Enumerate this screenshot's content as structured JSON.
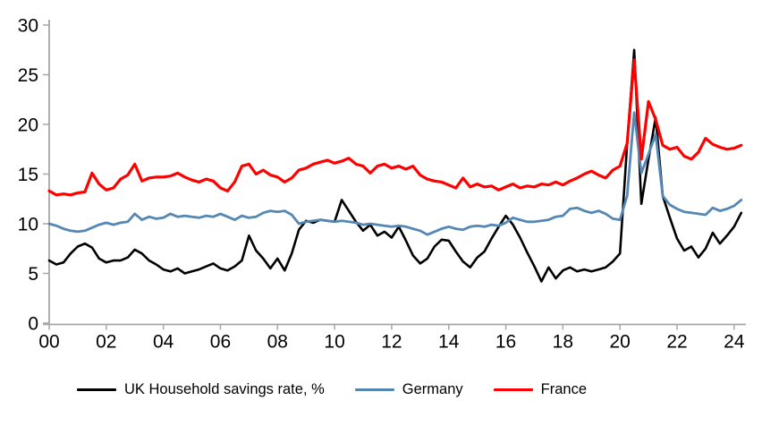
{
  "chart_data": {
    "type": "line",
    "title": "",
    "xlabel": "",
    "ylabel": "",
    "frequency": "quarterly",
    "x_start_year": 2000,
    "x_end_year": 2024.25,
    "x_tick_labels": [
      "00",
      "02",
      "04",
      "06",
      "08",
      "10",
      "12",
      "14",
      "16",
      "18",
      "20",
      "22",
      "24"
    ],
    "y_ticks": [
      0,
      5,
      10,
      15,
      20,
      25,
      30
    ],
    "ylim": [
      0,
      30
    ],
    "grid": false,
    "legend_position": "bottom",
    "axis_color": "#a6a6a6",
    "text_color": "#000000",
    "series": [
      {
        "name": "UK Household savings rate, %",
        "color": "#000000",
        "values": [
          6.3,
          5.9,
          6.1,
          7.0,
          7.7,
          8.0,
          7.6,
          6.5,
          6.1,
          6.3,
          6.3,
          6.6,
          7.4,
          7.0,
          6.3,
          5.9,
          5.4,
          5.2,
          5.5,
          5.0,
          5.2,
          5.4,
          5.7,
          6.0,
          5.5,
          5.3,
          5.7,
          6.3,
          8.8,
          7.3,
          6.5,
          5.5,
          6.5,
          5.3,
          7.0,
          9.4,
          10.3,
          10.1,
          10.4,
          10.3,
          10.2,
          12.4,
          11.3,
          10.2,
          9.3,
          9.9,
          8.8,
          9.2,
          8.6,
          9.7,
          8.3,
          6.8,
          6.0,
          6.5,
          7.7,
          8.4,
          8.3,
          7.2,
          6.2,
          5.6,
          6.6,
          7.2,
          8.5,
          9.7,
          10.8,
          9.9,
          8.6,
          7.1,
          5.7,
          4.2,
          5.6,
          4.5,
          5.3,
          5.6,
          5.2,
          5.4,
          5.2,
          5.4,
          5.6,
          6.2,
          7.0,
          18.0,
          27.5,
          12.0,
          16.5,
          20.7,
          12.8,
          10.6,
          8.5,
          7.3,
          7.7,
          6.6,
          7.5,
          9.1,
          8.0,
          8.8,
          9.7,
          11.1
        ]
      },
      {
        "name": "Germany",
        "color": "#5587b4",
        "values": [
          10.0,
          9.8,
          9.5,
          9.3,
          9.2,
          9.3,
          9.6,
          9.9,
          10.1,
          9.9,
          10.1,
          10.2,
          11.0,
          10.4,
          10.7,
          10.5,
          10.6,
          11.0,
          10.7,
          10.8,
          10.7,
          10.6,
          10.8,
          10.7,
          11.0,
          10.7,
          10.4,
          10.8,
          10.6,
          10.7,
          11.1,
          11.3,
          11.2,
          11.3,
          10.9,
          10.0,
          10.2,
          10.3,
          10.4,
          10.3,
          10.2,
          10.3,
          10.2,
          10.1,
          9.9,
          10.0,
          9.9,
          9.8,
          9.7,
          9.8,
          9.7,
          9.5,
          9.3,
          8.9,
          9.2,
          9.5,
          9.7,
          9.5,
          9.4,
          9.7,
          9.8,
          9.7,
          9.9,
          9.8,
          10.1,
          10.6,
          10.4,
          10.2,
          10.2,
          10.3,
          10.4,
          10.7,
          10.8,
          11.5,
          11.6,
          11.3,
          11.1,
          11.3,
          11.0,
          10.5,
          10.4,
          12.8,
          21.2,
          15.1,
          17.0,
          19.0,
          12.8,
          11.9,
          11.5,
          11.2,
          11.1,
          11.0,
          10.9,
          11.6,
          11.3,
          11.5,
          11.8,
          12.4
        ]
      },
      {
        "name": "France",
        "color": "#ff0000",
        "values": [
          13.3,
          12.9,
          13.0,
          12.9,
          13.1,
          13.2,
          15.1,
          14.0,
          13.4,
          13.6,
          14.5,
          14.9,
          16.0,
          14.3,
          14.6,
          14.7,
          14.7,
          14.8,
          15.1,
          14.7,
          14.4,
          14.2,
          14.5,
          14.3,
          13.6,
          13.3,
          14.2,
          15.8,
          16.0,
          15.0,
          15.4,
          14.9,
          14.7,
          14.2,
          14.6,
          15.4,
          15.6,
          16.0,
          16.2,
          16.4,
          16.1,
          16.3,
          16.6,
          16.0,
          15.8,
          15.1,
          15.8,
          16.0,
          15.6,
          15.8,
          15.5,
          15.8,
          14.9,
          14.5,
          14.3,
          14.2,
          13.9,
          13.6,
          14.6,
          13.7,
          14.0,
          13.7,
          13.8,
          13.4,
          13.7,
          14.0,
          13.6,
          13.8,
          13.7,
          14.0,
          13.9,
          14.2,
          13.9,
          14.3,
          14.6,
          15.0,
          15.3,
          14.9,
          14.6,
          15.4,
          15.8,
          18.1,
          26.5,
          16.5,
          22.3,
          20.5,
          17.9,
          17.5,
          17.7,
          16.8,
          16.5,
          17.2,
          18.6,
          18.0,
          17.7,
          17.5,
          17.6,
          17.9
        ]
      }
    ]
  }
}
